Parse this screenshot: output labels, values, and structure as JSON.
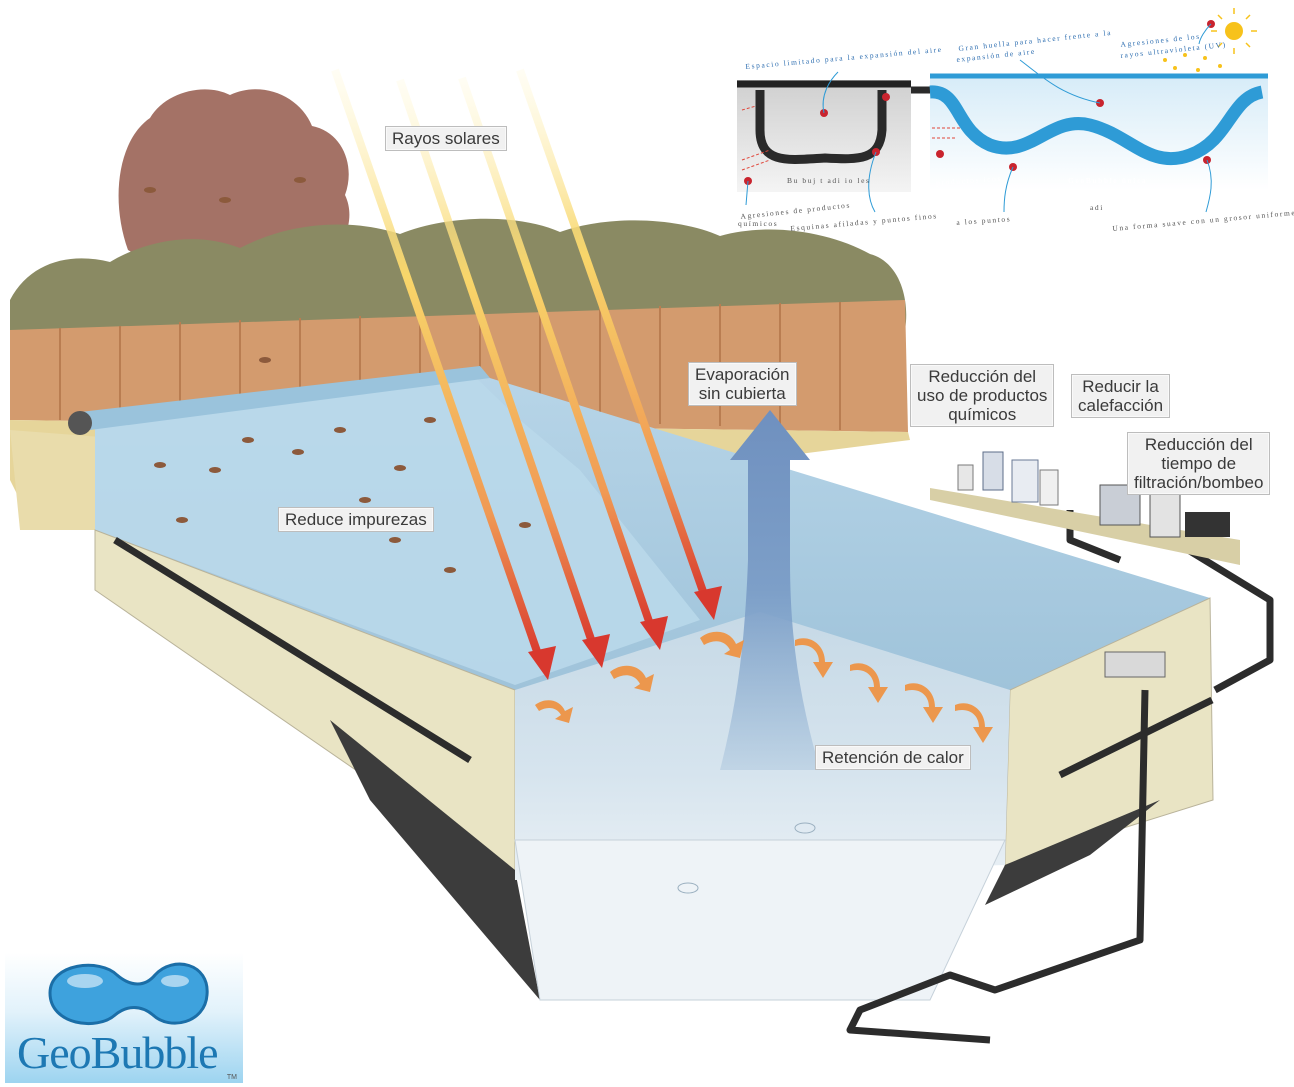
{
  "labels": {
    "rayos": "Rayos solares",
    "evap": "Evaporación\nsin cubierta",
    "quimicos": "Reducción del\nuso de productos\nquímicos",
    "calefaccion": "Reducir la\ncalefacción",
    "filtracion": "Reducción del\ntiempo de\nfiltración/bombeo",
    "impurezas": "Reduce impurezas",
    "calor": "Retención de calor"
  },
  "inset": {
    "left": {
      "espacio": "Espacio limitado   para la expansión del  aire",
      "burbujas": "Bu  buj    t adi  io      les",
      "agresiones": "Agresiones  de productos",
      "quimicos": "químicos",
      "esquinas": "Esquinas afiladas  y puntos finos"
    },
    "right": {
      "huella": "Gran  huella para hacer frente a la",
      "expansion": "expansión de aire",
      "uv1": "Agresiones de los",
      "uv2": "rayos ultravioleta (UV)",
      "productos": "productos        icos",
      "geobubble": "GeoBubble única",
      "adi": "adi",
      "puntos": "a los  puntos",
      "forma": "Una forma suave con  un  grosor uniforme"
    }
  },
  "logo": {
    "name": "GeoBubble",
    "tm": "TM"
  },
  "colors": {
    "pool_water": "#a9cde4",
    "cover": "#b9d8ea",
    "wall": "#e9e4c4",
    "deck": "#e6d59a",
    "fence": "#d39b6e",
    "tree": "#a47266",
    "hedge": "#8a8a63",
    "arrow_red": "#d8382e",
    "arrow_yellow": "#f7d46b",
    "inset_blue": "#2e9bd6",
    "pin": "#c9242e"
  }
}
